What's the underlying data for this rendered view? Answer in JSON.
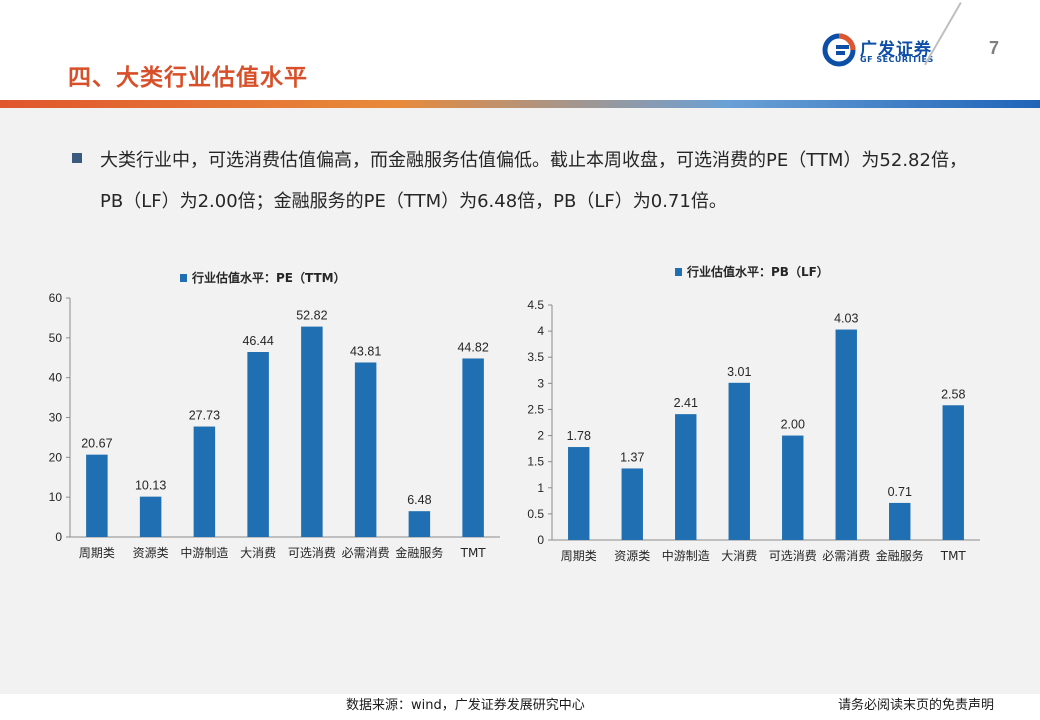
{
  "header": {
    "title": "四、大类行业估值水平",
    "logo_cn": "广发证券",
    "logo_en": "GF SECURITIES",
    "page_number": "7"
  },
  "bullet": {
    "text": "大类行业中，可选消费估值偏高，而金融服务估值偏低。截止本周收盘，可选消费的PE（TTM）为52.82倍，PB（LF）为2.00倍；金融服务的PE（TTM）为6.48倍，PB（LF）为0.71倍。"
  },
  "colors": {
    "bar": "#1f6fb2",
    "title": "#d8502a",
    "brand": "#0d4ea6"
  },
  "chart_data": [
    {
      "type": "bar",
      "title": "",
      "legend": "行业估值水平：PE（TTM）",
      "categories": [
        "周期类",
        "资源类",
        "中游制造",
        "大消费",
        "可选消费",
        "必需消费",
        "金融服务",
        "TMT"
      ],
      "values": [
        20.67,
        10.13,
        27.73,
        46.44,
        52.82,
        43.81,
        6.48,
        44.82
      ],
      "value_labels": [
        "20.67",
        "10.13",
        "27.73",
        "46.44",
        "52.82",
        "43.81",
        "6.48",
        "44.82"
      ],
      "ylim": [
        0,
        60
      ],
      "yticks": [
        "0",
        "10",
        "20",
        "30",
        "40",
        "50",
        "60"
      ],
      "ytick_values": [
        0,
        10,
        20,
        30,
        40,
        50,
        60
      ],
      "xlabel": "",
      "ylabel": ""
    },
    {
      "type": "bar",
      "title": "",
      "legend": "行业估值水平：PB（LF）",
      "categories": [
        "周期类",
        "资源类",
        "中游制造",
        "大消费",
        "可选消费",
        "必需消费",
        "金融服务",
        "TMT"
      ],
      "values": [
        1.78,
        1.37,
        2.41,
        3.01,
        2.0,
        4.03,
        0.71,
        2.58
      ],
      "value_labels": [
        "1.78",
        "1.37",
        "2.41",
        "3.01",
        "2.00",
        "4.03",
        "0.71",
        "2.58"
      ],
      "ylim": [
        0,
        4.5
      ],
      "yticks": [
        "0",
        "0.5",
        "1",
        "1.5",
        "2",
        "2.5",
        "3",
        "3.5",
        "4",
        "4.5"
      ],
      "ytick_values": [
        0,
        0.5,
        1,
        1.5,
        2,
        2.5,
        3,
        3.5,
        4,
        4.5
      ],
      "xlabel": "",
      "ylabel": ""
    }
  ],
  "footer": {
    "source": "数据来源：wind，广发证券发展研究中心",
    "disclaimer": "请务必阅读末页的免责声明"
  }
}
